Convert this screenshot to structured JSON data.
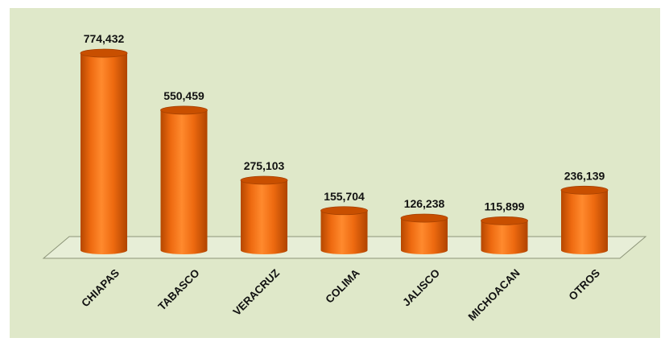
{
  "colors": {
    "background": "#dfe8c9",
    "bar_front": "#ee6a10",
    "bar_top": "#c84f00",
    "floor": "#e7eed7",
    "floor_edge": "#8c9478",
    "text": "#111111"
  },
  "chart_data": {
    "type": "bar",
    "style": "3d-cylinder",
    "categories": [
      "CHIAPAS",
      "TABASCO",
      "VERACRUZ",
      "COLIMA",
      "JALISCO",
      "MICHOACAN",
      "OTROS"
    ],
    "values": [
      774432,
      550459,
      275103,
      155704,
      126238,
      115899,
      236139
    ],
    "value_labels": [
      "774,432",
      "550,459",
      "275,103",
      "155,704",
      "126,238",
      "115,899",
      "236,139"
    ],
    "title": "",
    "xlabel": "",
    "ylabel": "",
    "ylim": [
      0,
      800000
    ],
    "grid": false,
    "legend": "none"
  }
}
